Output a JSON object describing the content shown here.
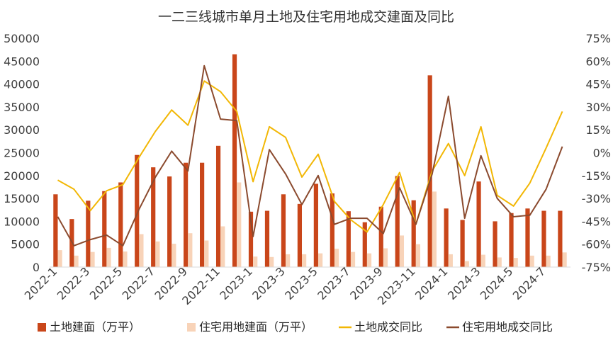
{
  "chart_data": {
    "type": "bar",
    "title": "一二三线城市单月土地及住宅用地成交建面及同比",
    "categories": [
      "2022-1",
      "2022-2",
      "2022-3",
      "2022-4",
      "2022-5",
      "2022-6",
      "2022-7",
      "2022-8",
      "2022-9",
      "2022-10",
      "2022-11",
      "2022-12",
      "2023-1",
      "2023-2",
      "2023-3",
      "2023-4",
      "2023-5",
      "2023-6",
      "2023-7",
      "2023-8",
      "2023-9",
      "2023-10",
      "2023-11",
      "2023-12",
      "2024-1",
      "2024-2",
      "2024-3",
      "2024-4",
      "2024-5",
      "2024-6",
      "2024-7",
      "2024-8"
    ],
    "x_tick_labels": [
      "2022-1",
      "2022-3",
      "2022-5",
      "2022-7",
      "2022-9",
      "2022-11",
      "2023-1",
      "2023-3",
      "2023-5",
      "2023-7",
      "2023-9",
      "2023-11",
      "2024-1",
      "2024-3",
      "2024-5",
      "2024-7"
    ],
    "y_left": {
      "min": 0,
      "max": 50000,
      "step": 5000,
      "tick_labels": [
        "0",
        "5000",
        "10000",
        "15000",
        "20000",
        "25000",
        "30000",
        "35000",
        "40000",
        "45000",
        "50000"
      ]
    },
    "y_right": {
      "min": -75,
      "max": 75,
      "step": 15,
      "tick_labels": [
        "-75%",
        "-60%",
        "-45%",
        "-30%",
        "-15%",
        "0%",
        "15%",
        "30%",
        "45%",
        "60%",
        "75%"
      ]
    },
    "series": [
      {
        "name": "土地建面（万平）",
        "kind": "bar",
        "axis": "left",
        "color": "#C9461A",
        "values": [
          15900,
          10500,
          14500,
          16600,
          18500,
          24500,
          21800,
          19800,
          22800,
          22800,
          26500,
          46500,
          12100,
          12300,
          15900,
          13800,
          18200,
          16100,
          12200,
          9800,
          13200,
          19900,
          14600,
          41900,
          12800,
          10300,
          18700,
          10000,
          11800,
          12800,
          12300,
          12300
        ]
      },
      {
        "name": "住宅用地建面（万平）",
        "kind": "bar",
        "axis": "left",
        "color": "#F8D3B8",
        "values": [
          3700,
          2500,
          3300,
          4200,
          3400,
          7200,
          5600,
          5100,
          7400,
          5800,
          8900,
          18500,
          2300,
          2200,
          2800,
          2800,
          3000,
          4000,
          3300,
          3000,
          4100,
          6900,
          5000,
          16500,
          2800,
          1300,
          2700,
          2100,
          2000,
          2500,
          2500,
          3200
        ]
      },
      {
        "name": "土地成交同比",
        "kind": "line",
        "axis": "right",
        "color": "#F2B705",
        "values": [
          -18,
          -24,
          -38,
          -25,
          -21,
          -3,
          14,
          28,
          18,
          47,
          40,
          27,
          -19,
          17,
          10,
          -16,
          -1,
          -32,
          -44,
          -52,
          -34,
          -13,
          -47,
          -12,
          6,
          -15,
          17,
          -28,
          -35,
          -20,
          3,
          27
        ]
      },
      {
        "name": "住宅用地成交同比",
        "kind": "line",
        "axis": "right",
        "color": "#8B4A2E",
        "values": [
          -42,
          -61,
          -57,
          -54,
          -61,
          -37,
          -16,
          1,
          -12,
          57,
          22,
          21,
          -55,
          2,
          -14,
          -34,
          -15,
          -47,
          -43,
          -43,
          -53,
          -23,
          -47,
          -14,
          37,
          -43,
          -2,
          -30,
          -42,
          -41,
          -24,
          4
        ]
      }
    ],
    "legend_position": "bottom",
    "grid": false
  }
}
